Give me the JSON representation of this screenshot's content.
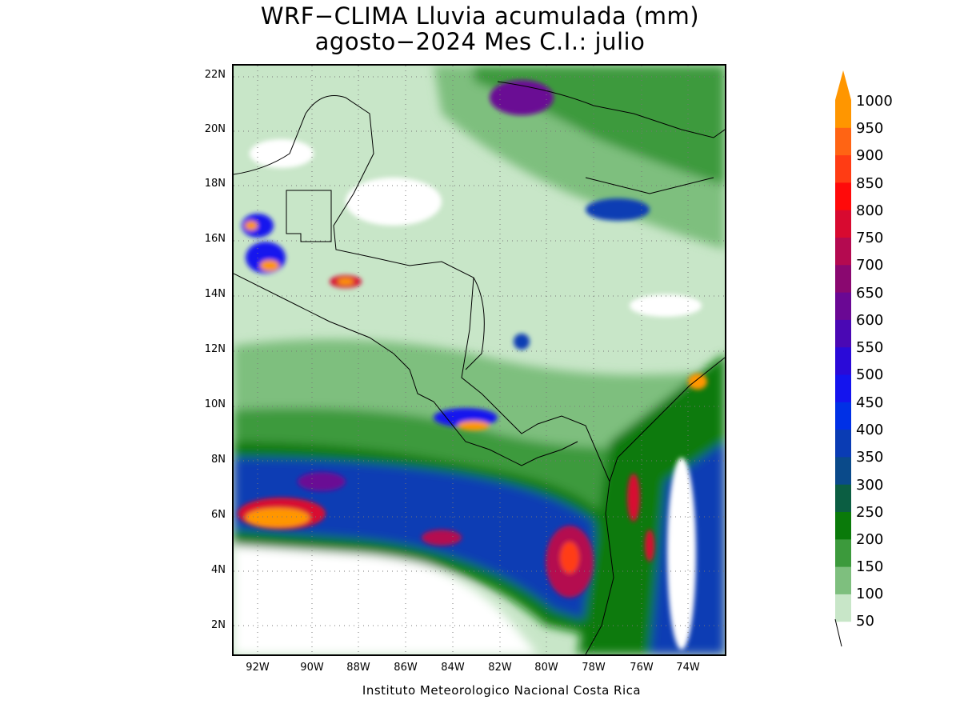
{
  "title": {
    "line1": "WRF−CLIMA Lluvia acumulada (mm)",
    "line2": "agosto−2024 Mes C.I.: julio"
  },
  "credit": "Instituto Meteorologico Nacional Costa Rica",
  "axes": {
    "lat_labels": [
      "22N",
      "20N",
      "18N",
      "16N",
      "14N",
      "12N",
      "10N",
      "8N",
      "6N",
      "4N",
      "2N"
    ],
    "lon_labels": [
      "92W",
      "90W",
      "88W",
      "86W",
      "84W",
      "82W",
      "80W",
      "78W",
      "76W",
      "74W"
    ],
    "lat_range": [
      1,
      22.4
    ],
    "lon_range": [
      -93.1,
      -72.4
    ],
    "grid": "dotted"
  },
  "colorbar": {
    "labels": [
      "1000",
      "950",
      "900",
      "850",
      "800",
      "750",
      "700",
      "650",
      "600",
      "550",
      "500",
      "450",
      "400",
      "350",
      "300",
      "250",
      "200",
      "150",
      "100",
      "50"
    ],
    "colors": [
      "#c8e6c8",
      "#7ebf7e",
      "#3c9a3c",
      "#0a7a0a",
      "#0b5e42",
      "#0a4a8a",
      "#0a3cb4",
      "#0030e6",
      "#1414ee",
      "#2a0ad8",
      "#4a08b4",
      "#6a0894",
      "#8a0870",
      "#b40a50",
      "#d80a30",
      "#ff0a0a",
      "#ff3c14",
      "#ff6414",
      "#ff9600"
    ]
  }
}
